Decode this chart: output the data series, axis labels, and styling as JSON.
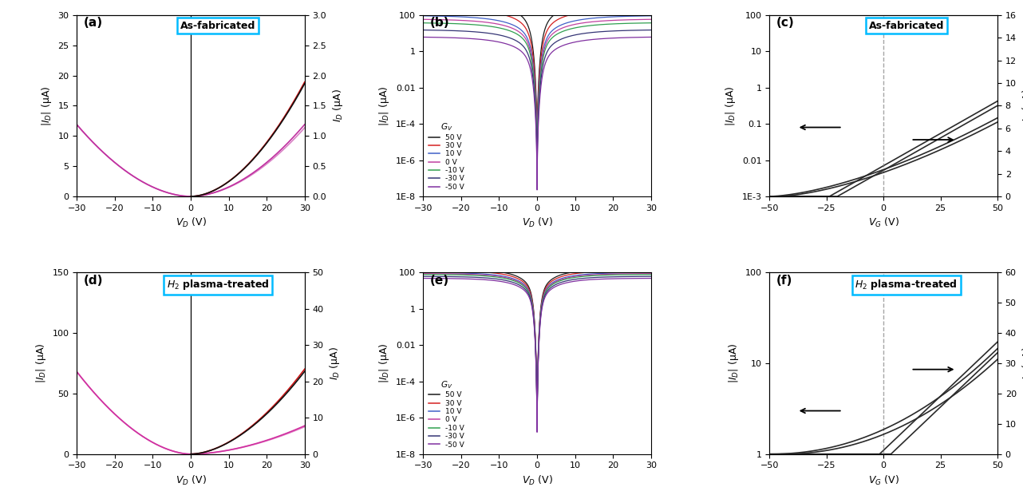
{
  "colors_b": [
    "#1a1a1a",
    "#d42020",
    "#4060c8",
    "#c040a0",
    "#30a050",
    "#353575",
    "#8030a0"
  ],
  "vg_vals": [
    50,
    30,
    10,
    0,
    -10,
    -30,
    -50
  ],
  "legend_entries": [
    "50 V",
    "30 V",
    "10 V",
    "0 V",
    "-10 V",
    "-30 V",
    "-50 V"
  ],
  "yticks_b": [
    1e-08,
    1e-06,
    0.0001,
    0.01,
    1.0,
    100.0
  ],
  "ylabels_b": [
    "1E-8",
    "1E-6",
    "1E-4",
    "0.01",
    "1",
    "100"
  ]
}
